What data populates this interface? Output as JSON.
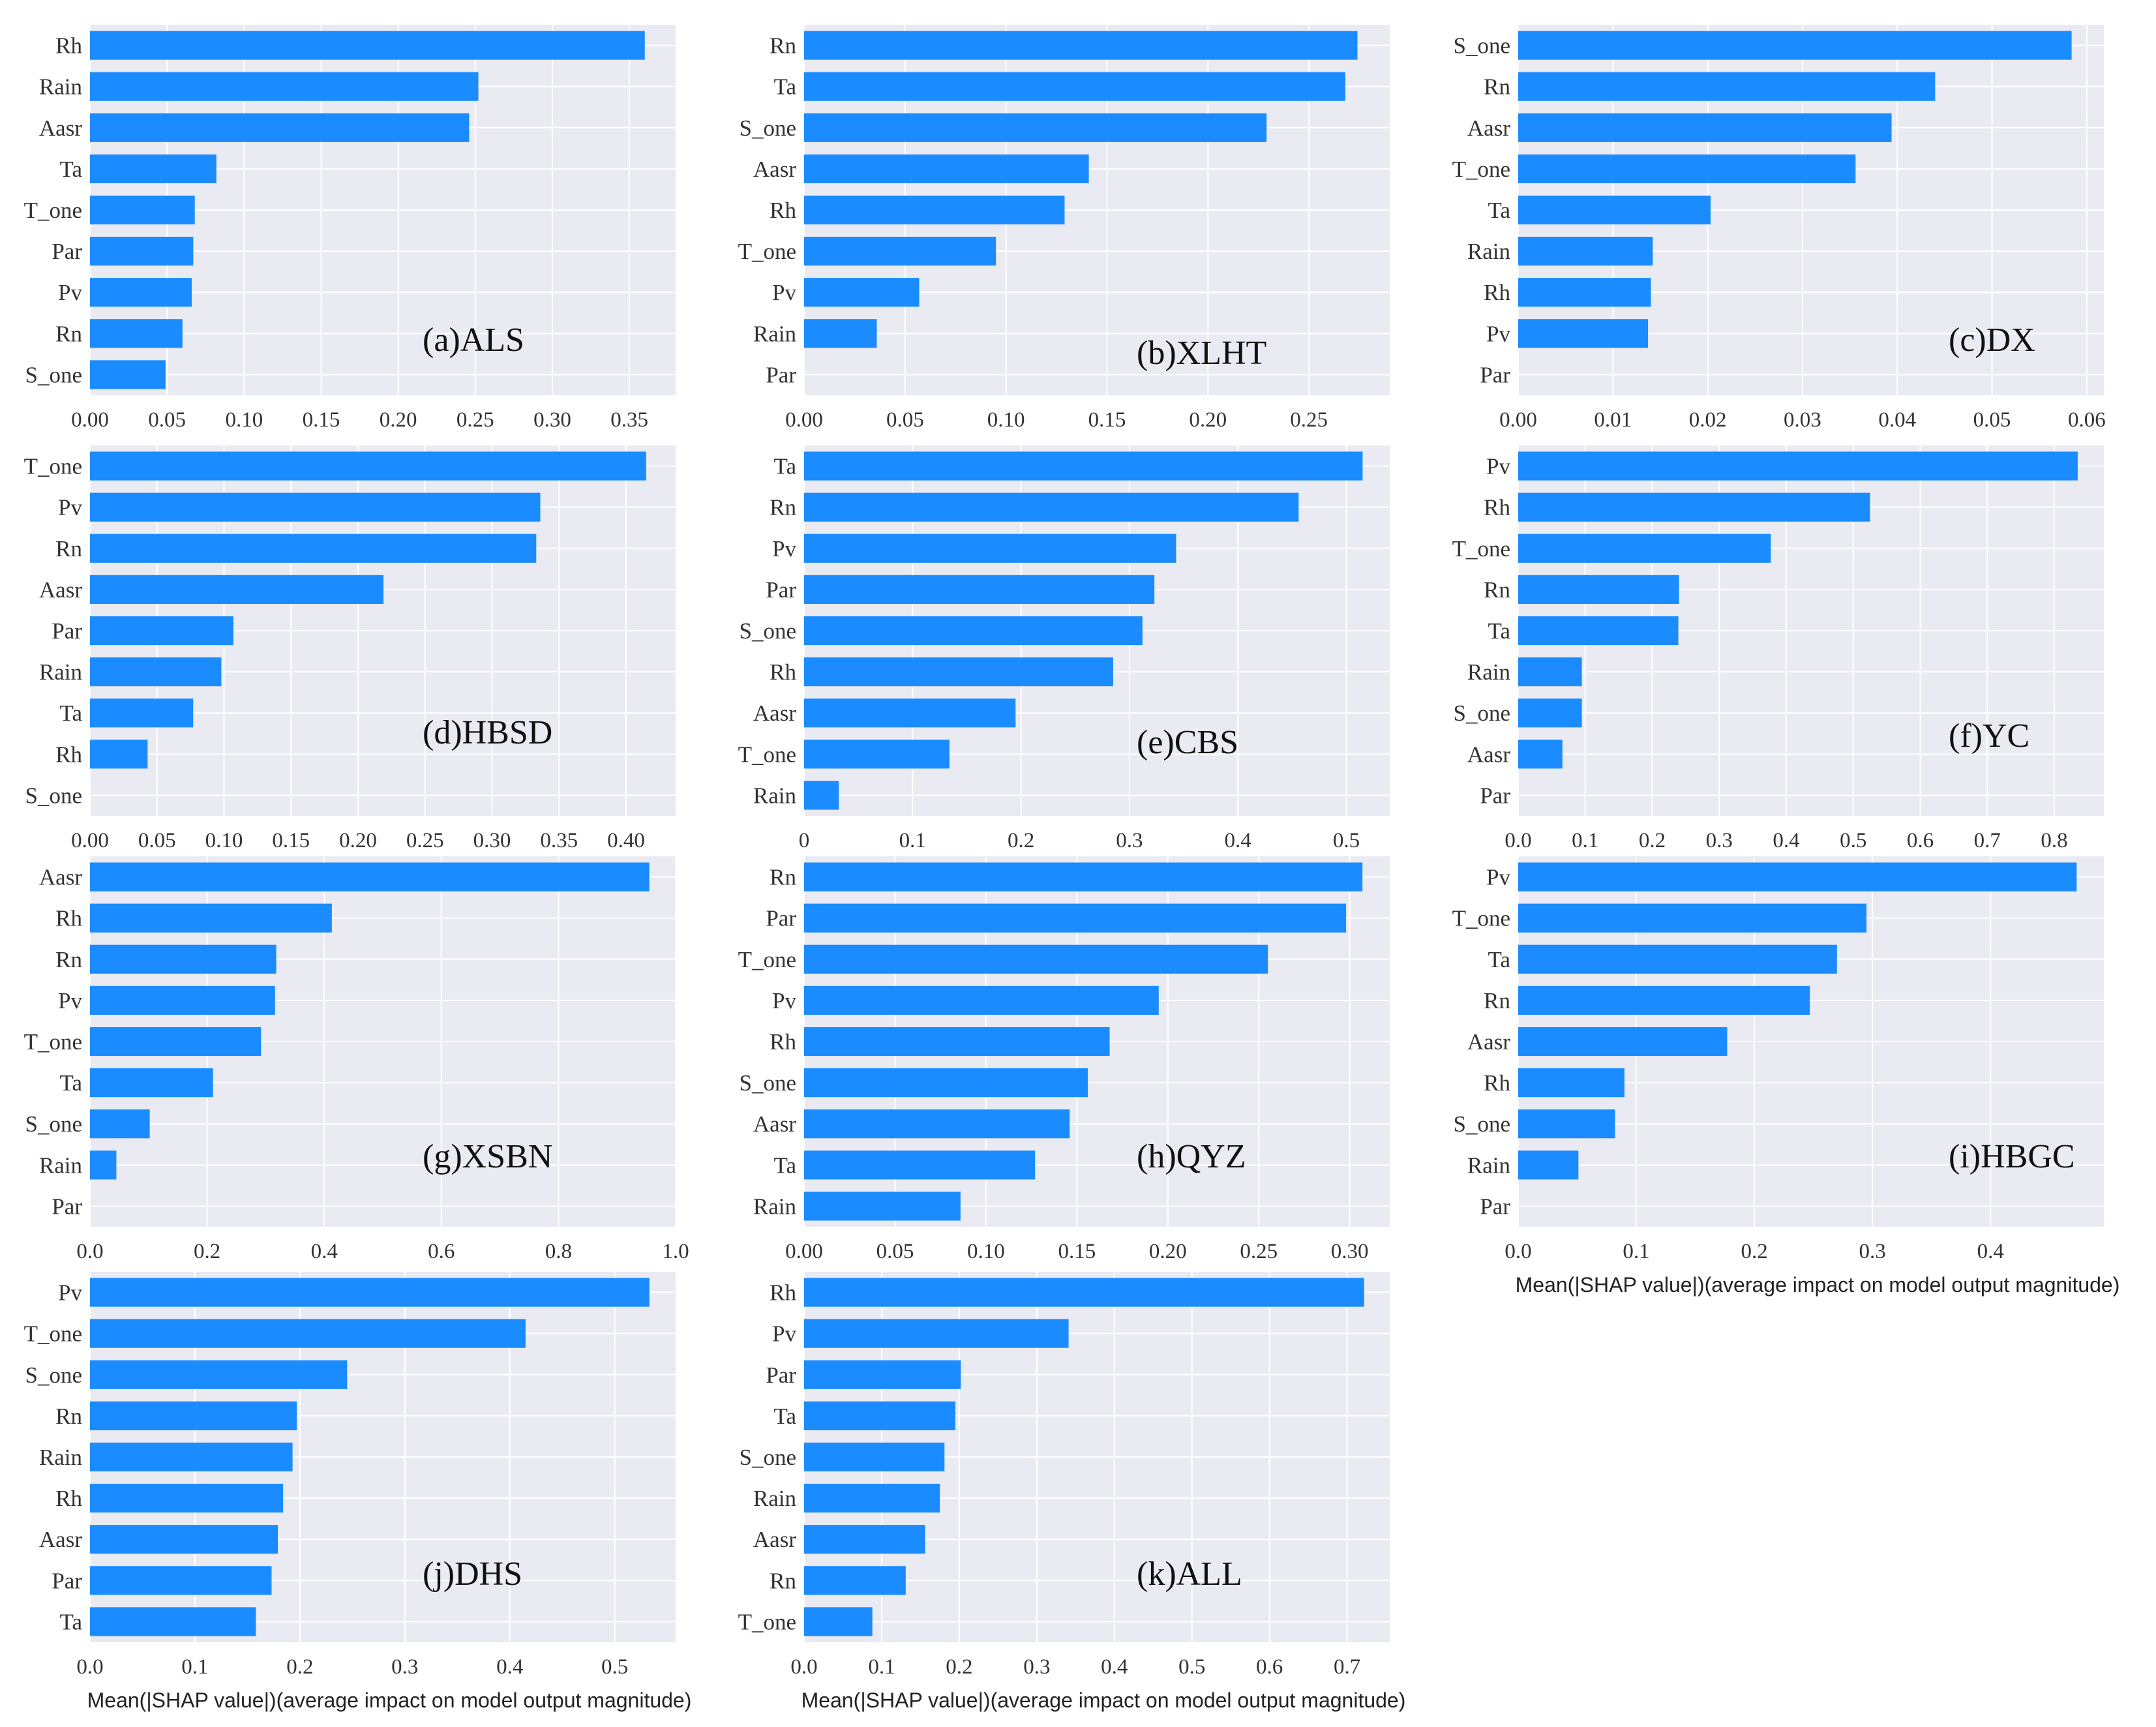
{
  "chart_data": [
    {
      "type": "bar",
      "orientation": "horizontal",
      "panel_label": "(a)ALS",
      "categories": [
        "Rh",
        "Rain",
        "Aasr",
        "Ta",
        "T_one",
        "Par",
        "Pv",
        "Rn",
        "S_one"
      ],
      "values": [
        0.36,
        0.252,
        0.246,
        0.082,
        0.068,
        0.067,
        0.066,
        0.06,
        0.049
      ],
      "xlim": [
        0,
        0.38
      ],
      "xticks": [
        0,
        0.05,
        0.1,
        0.15,
        0.2,
        0.25,
        0.3,
        0.35
      ],
      "tick_labels": [
        "0.00",
        "0.05",
        "0.10",
        "0.15",
        "0.20",
        "0.25",
        "0.30",
        "0.35"
      ],
      "xlabel": ""
    },
    {
      "type": "bar",
      "orientation": "horizontal",
      "panel_label": "(b)XLHT",
      "categories": [
        "Rn",
        "Ta",
        "S_one",
        "Aasr",
        "Rh",
        "T_one",
        "Pv",
        "Rain",
        "Par"
      ],
      "values": [
        0.274,
        0.268,
        0.229,
        0.141,
        0.129,
        0.095,
        0.057,
        0.036,
        0.0
      ],
      "xlim": [
        0,
        0.29
      ],
      "xticks": [
        0,
        0.05,
        0.1,
        0.15,
        0.2,
        0.25
      ],
      "tick_labels": [
        "0.00",
        "0.05",
        "0.10",
        "0.15",
        "0.20",
        "0.25"
      ],
      "xlabel": ""
    },
    {
      "type": "bar",
      "orientation": "horizontal",
      "panel_label": "(c)DX",
      "categories": [
        "S_one",
        "Rn",
        "Aasr",
        "T_one",
        "Ta",
        "Rain",
        "Rh",
        "Pv",
        "Par"
      ],
      "values": [
        0.0584,
        0.044,
        0.0394,
        0.0356,
        0.0203,
        0.0142,
        0.014,
        0.0137,
        0.0
      ],
      "xlim": [
        0,
        0.0618
      ],
      "xticks": [
        0,
        0.01,
        0.02,
        0.03,
        0.04,
        0.05,
        0.06
      ],
      "tick_labels": [
        "0.00",
        "0.01",
        "0.02",
        "0.03",
        "0.04",
        "0.05",
        "0.06"
      ],
      "xlabel": ""
    },
    {
      "type": "bar",
      "orientation": "horizontal",
      "panel_label": "(d)HBSD",
      "categories": [
        "T_one",
        "Pv",
        "Rn",
        "Aasr",
        "Par",
        "Rain",
        "Ta",
        "Rh",
        "S_one"
      ],
      "values": [
        0.415,
        0.336,
        0.333,
        0.219,
        0.107,
        0.098,
        0.077,
        0.043,
        0.0
      ],
      "xlim": [
        0,
        0.437
      ],
      "xticks": [
        0,
        0.05,
        0.1,
        0.15,
        0.2,
        0.25,
        0.3,
        0.35,
        0.4
      ],
      "tick_labels": [
        "0.00",
        "0.05",
        "0.10",
        "0.15",
        "0.20",
        "0.25",
        "0.30",
        "0.35",
        "0.40"
      ],
      "xlabel": ""
    },
    {
      "type": "bar",
      "orientation": "horizontal",
      "panel_label": "(e)CBS",
      "categories": [
        "Ta",
        "Rn",
        "Pv",
        "Par",
        "S_one",
        "Rh",
        "Aasr",
        "T_one",
        "Rain"
      ],
      "values": [
        0.515,
        0.456,
        0.343,
        0.323,
        0.312,
        0.285,
        0.195,
        0.134,
        0.032
      ],
      "xlim": [
        0,
        0.54
      ],
      "xticks": [
        0,
        0.1,
        0.2,
        0.3,
        0.4,
        0.5
      ],
      "tick_labels": [
        "0",
        "0.1",
        "0.2",
        "0.3",
        "0.4",
        "0.5"
      ],
      "xlabel": ""
    },
    {
      "type": "bar",
      "orientation": "horizontal",
      "panel_label": "(f)YC",
      "categories": [
        "Pv",
        "Rh",
        "T_one",
        "Rn",
        "Ta",
        "Rain",
        "S_one",
        "Aasr",
        "Par"
      ],
      "values": [
        0.835,
        0.525,
        0.377,
        0.24,
        0.239,
        0.095,
        0.095,
        0.066,
        0.0
      ],
      "xlim": [
        0,
        0.874
      ],
      "xticks": [
        0,
        0.1,
        0.2,
        0.3,
        0.4,
        0.5,
        0.6,
        0.7,
        0.8
      ],
      "tick_labels": [
        "0.0",
        "0.1",
        "0.2",
        "0.3",
        "0.4",
        "0.5",
        "0.6",
        "0.7",
        "0.8"
      ],
      "xlabel": ""
    },
    {
      "type": "bar",
      "orientation": "horizontal",
      "panel_label": "(g)XSBN",
      "categories": [
        "Aasr",
        "Rh",
        "Rn",
        "Pv",
        "T_one",
        "Ta",
        "S_one",
        "Rain",
        "Par"
      ],
      "values": [
        0.955,
        0.413,
        0.318,
        0.316,
        0.292,
        0.21,
        0.102,
        0.045,
        0.0
      ],
      "xlim": [
        0,
        1.0
      ],
      "xticks": [
        0,
        0.2,
        0.4,
        0.6,
        0.8,
        1.0
      ],
      "tick_labels": [
        "0.0",
        "0.2",
        "0.4",
        "0.6",
        "0.8",
        "1.0"
      ],
      "xlabel": ""
    },
    {
      "type": "bar",
      "orientation": "horizontal",
      "panel_label": "(h)QYZ",
      "categories": [
        "Rn",
        "Par",
        "T_one",
        "Pv",
        "Rh",
        "S_one",
        "Aasr",
        "Ta",
        "Rain"
      ],
      "values": [
        0.307,
        0.298,
        0.255,
        0.195,
        0.168,
        0.156,
        0.146,
        0.127,
        0.086
      ],
      "xlim": [
        0,
        0.322
      ],
      "xticks": [
        0,
        0.05,
        0.1,
        0.15,
        0.2,
        0.25,
        0.3
      ],
      "tick_labels": [
        "0.00",
        "0.05",
        "0.10",
        "0.15",
        "0.20",
        "0.25",
        "0.30"
      ],
      "xlabel": ""
    },
    {
      "type": "bar",
      "orientation": "horizontal",
      "panel_label": "(i)HBGC",
      "categories": [
        "Pv",
        "T_one",
        "Ta",
        "Rn",
        "Aasr",
        "Rh",
        "S_one",
        "Rain",
        "Par"
      ],
      "values": [
        0.473,
        0.295,
        0.27,
        0.247,
        0.177,
        0.09,
        0.082,
        0.051,
        0.0
      ],
      "xlim": [
        0,
        0.496
      ],
      "xticks": [
        0,
        0.1,
        0.2,
        0.3,
        0.4
      ],
      "tick_labels": [
        "0.0",
        "0.1",
        "0.2",
        "0.3",
        "0.4"
      ],
      "xlabel": "Mean(|SHAP value|)(average impact on model output magnitude)"
    },
    {
      "type": "bar",
      "orientation": "horizontal",
      "panel_label": "(j)DHS",
      "categories": [
        "Pv",
        "T_one",
        "S_one",
        "Rn",
        "Rain",
        "Rh",
        "Aasr",
        "Par",
        "Ta"
      ],
      "values": [
        0.533,
        0.415,
        0.245,
        0.197,
        0.193,
        0.184,
        0.179,
        0.173,
        0.158
      ],
      "xlim": [
        0,
        0.558
      ],
      "xticks": [
        0,
        0.1,
        0.2,
        0.3,
        0.4,
        0.5
      ],
      "tick_labels": [
        "0.0",
        "0.1",
        "0.2",
        "0.3",
        "0.4",
        "0.5"
      ],
      "xlabel": "Mean(|SHAP value|)(average impact on model output magnitude)"
    },
    {
      "type": "bar",
      "orientation": "horizontal",
      "panel_label": "(k)ALL",
      "categories": [
        "Rh",
        "Pv",
        "Par",
        "Ta",
        "S_one",
        "Rain",
        "Aasr",
        "Rn",
        "T_one"
      ],
      "values": [
        0.722,
        0.341,
        0.202,
        0.195,
        0.181,
        0.175,
        0.156,
        0.131,
        0.088
      ],
      "xlim": [
        0,
        0.755
      ],
      "xticks": [
        0,
        0.1,
        0.2,
        0.3,
        0.4,
        0.5,
        0.6,
        0.7
      ],
      "tick_labels": [
        "0.0",
        "0.1",
        "0.2",
        "0.3",
        "0.4",
        "0.5",
        "0.6",
        "0.7"
      ],
      "xlabel": "Mean(|SHAP value|)(average impact on model output magnitude)"
    }
  ],
  "colors": {
    "bar": "#1a8cff",
    "panel_background": "#eaeaf2",
    "grid": "#ffffff"
  }
}
